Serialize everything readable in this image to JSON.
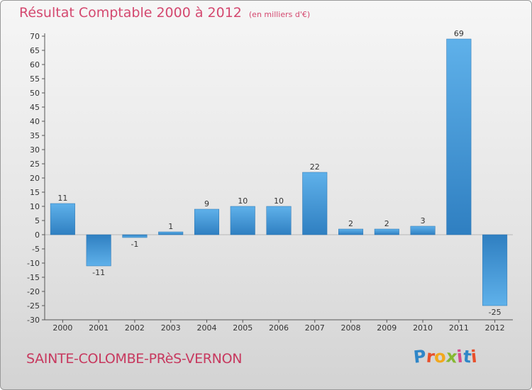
{
  "header": {
    "title": "Résultat Comptable 2000 à 2012",
    "subtitle": "(en milliers d'€)"
  },
  "footer": {
    "commune": "SAINTE-COLOMBE-PRèS-VERNON",
    "logo_letters": [
      "P",
      "r",
      "o",
      "x",
      "i",
      "t",
      "i"
    ],
    "logo_colors": [
      "#2f86c8",
      "#e84f2b",
      "#f2a81d",
      "#86b832",
      "#d64a8a",
      "#2f86c8",
      "#e84f2b"
    ]
  },
  "colors": {
    "bar_light": "#5fb1ea",
    "bar_dark": "#2f7fc1",
    "axis": "#555555",
    "grid": "#c8c8c8",
    "text": "#333333"
  },
  "chart_data": {
    "type": "bar",
    "title": "Résultat Comptable 2000 à 2012",
    "xlabel": "",
    "ylabel": "",
    "categories": [
      "2000",
      "2001",
      "2002",
      "2003",
      "2004",
      "2005",
      "2006",
      "2007",
      "2008",
      "2009",
      "2010",
      "2011",
      "2012"
    ],
    "values": [
      11,
      -11,
      -1,
      1,
      9,
      10,
      10,
      22,
      2,
      2,
      3,
      69,
      -25
    ],
    "value_labels": [
      "11",
      "-11",
      "-1",
      "1",
      "9",
      "10",
      "10",
      "22",
      "2",
      "2",
      "3",
      "69",
      "-25"
    ],
    "ylim": [
      -30,
      70
    ],
    "yticks": [
      -30,
      -25,
      -20,
      -15,
      -10,
      -5,
      0,
      5,
      10,
      15,
      20,
      25,
      30,
      35,
      40,
      45,
      50,
      55,
      60,
      65,
      70
    ],
    "grid": false
  }
}
